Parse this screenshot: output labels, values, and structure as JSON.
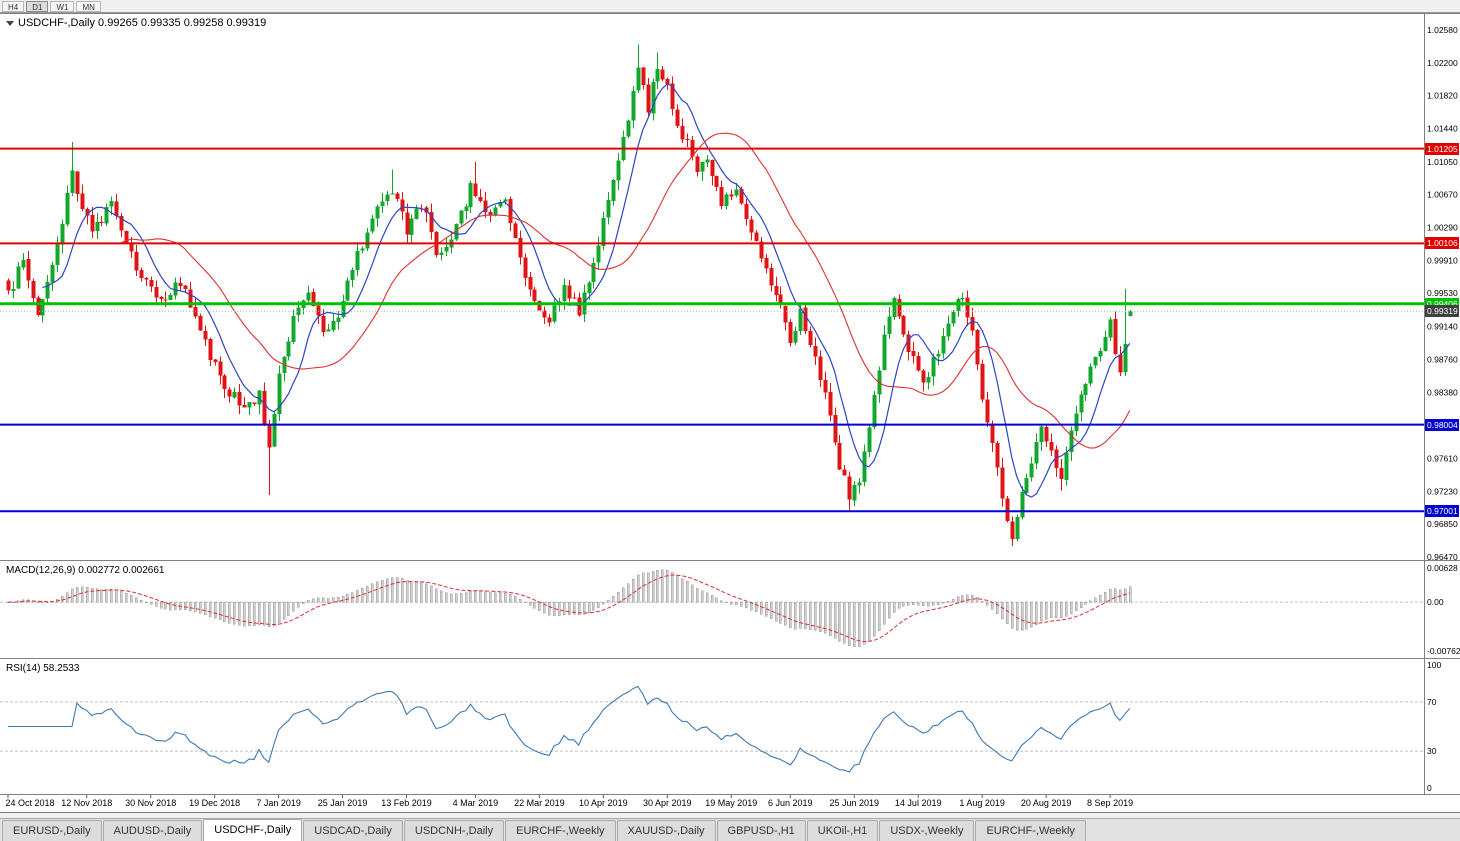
{
  "toolbar": {
    "timeframes": [
      "H4",
      "D1",
      "W1",
      "MN"
    ],
    "active": "D1"
  },
  "chart": {
    "header": "USDCHF-,Daily 0.99265 0.99335 0.99258 0.99319",
    "symbol": "USDCHF-,Daily",
    "ohlc": {
      "open": "0.99265",
      "high": "0.99335",
      "low": "0.99258",
      "close": "0.99319"
    }
  },
  "price_axis": {
    "labels": [
      "1.02580",
      "1.02200",
      "1.01820",
      "1.01440",
      "1.01050",
      "1.00670",
      "1.00290",
      "0.99910",
      "0.99530",
      "0.99140",
      "0.98760",
      "0.98380",
      "0.97990",
      "0.97610",
      "0.97230",
      "0.96850",
      "0.96470"
    ],
    "current_price_tag": "0.99319"
  },
  "levels": [
    {
      "label": "1.01205",
      "value": 1.01205,
      "color": "#e00000",
      "width": 2,
      "kind": "resistance"
    },
    {
      "label": "1.00106",
      "value": 1.00106,
      "color": "#e00000",
      "width": 2,
      "kind": "resistance"
    },
    {
      "label": "0.99406",
      "value": 0.99406,
      "color": "#00c000",
      "width": 3,
      "kind": "pivot"
    },
    {
      "label": "0.98004",
      "value": 0.98004,
      "color": "#0000d0",
      "width": 2,
      "kind": "support"
    },
    {
      "label": "0.97001",
      "value": 0.97001,
      "color": "#0000d0",
      "width": 2,
      "kind": "support"
    }
  ],
  "indicators": {
    "macd": {
      "label": "MACD(12,26,9) 0.002772 0.002661",
      "fast": 12,
      "slow": 26,
      "signal": 9,
      "axis_top": "0.00628",
      "axis_zero": "0.00",
      "axis_bottom": "-0.00762"
    },
    "rsi": {
      "label": "RSI(14) 58.2533",
      "period": 14,
      "value": 58.2533,
      "axis": [
        {
          "label": "100",
          "value": 100
        },
        {
          "label": "70",
          "value": 70
        },
        {
          "label": "30",
          "value": 30
        },
        {
          "label": "0",
          "value": 0
        }
      ],
      "levels": [
        70,
        30
      ]
    }
  },
  "date_axis": {
    "labels": [
      "24 Oct 2018",
      "12 Nov 2018",
      "30 Nov 2018",
      "19 Dec 2018",
      "7 Jan 2019",
      "25 Jan 2019",
      "13 Feb 2019",
      "4 Mar 2019",
      "22 Mar 2019",
      "10 Apr 2019",
      "30 Apr 2019",
      "19 May 2019",
      "6 Jun 2019",
      "25 Jun 2019",
      "14 Jul 2019",
      "1 Aug 2019",
      "20 Aug 2019",
      "8 Sep 2019"
    ],
    "bar_indices": [
      0,
      16,
      29,
      42,
      55,
      68,
      81,
      95,
      108,
      121,
      134,
      147,
      159,
      172,
      185,
      198,
      211,
      224
    ]
  },
  "tabs": {
    "items": [
      "EURUSD-,Daily",
      "AUDUSD-,Daily",
      "USDCHF-,Daily",
      "USDCAD-,Daily",
      "USDCNH-,Daily",
      "EURCHF-,Weekly",
      "XAUUSD-,Daily",
      "GBPUSD-,H1",
      "UKOil-,H1",
      "USDX-,Weekly",
      "EURCHF-,Weekly"
    ],
    "active_index": 2
  },
  "chart_data": {
    "type": "candlestick",
    "symbol": "USDCHF",
    "timeframe": "Daily",
    "bar_count": 229,
    "axis_range": {
      "top": 1.0258,
      "bottom": 0.9647
    },
    "price_keypoints": [
      [
        0,
        0.9952
      ],
      [
        3,
        0.999
      ],
      [
        6,
        0.993
      ],
      [
        9,
        0.9985
      ],
      [
        13,
        1.009
      ],
      [
        17,
        1.002
      ],
      [
        21,
        1.0058
      ],
      [
        26,
        0.998
      ],
      [
        31,
        0.994
      ],
      [
        35,
        0.9968
      ],
      [
        39,
        0.9905
      ],
      [
        44,
        0.9845
      ],
      [
        48,
        0.9818
      ],
      [
        51,
        0.9838
      ],
      [
        53,
        0.9768
      ],
      [
        55,
        0.9858
      ],
      [
        58,
        0.992
      ],
      [
        61,
        0.9952
      ],
      [
        64,
        0.9912
      ],
      [
        67,
        0.9928
      ],
      [
        71,
        0.9998
      ],
      [
        75,
        1.0048
      ],
      [
        78,
        1.0072
      ],
      [
        81,
        1.0028
      ],
      [
        84,
        1.0058
      ],
      [
        87,
        1.0002
      ],
      [
        90,
        1.0012
      ],
      [
        94,
        1.0075
      ],
      [
        98,
        1.004
      ],
      [
        101,
        1.0062
      ],
      [
        104,
        0.9995
      ],
      [
        107,
        0.994
      ],
      [
        110,
        0.9922
      ],
      [
        113,
        0.9962
      ],
      [
        116,
        0.993
      ],
      [
        119,
        0.9985
      ],
      [
        122,
        1.006
      ],
      [
        125,
        1.0135
      ],
      [
        128,
        1.0208
      ],
      [
        130,
        1.0168
      ],
      [
        132,
        1.0215
      ],
      [
        134,
        1.019
      ],
      [
        136,
        1.015
      ],
      [
        138,
        1.0125
      ],
      [
        140,
        1.0088
      ],
      [
        142,
        1.0108
      ],
      [
        145,
        1.0055
      ],
      [
        148,
        1.0078
      ],
      [
        151,
        1.0022
      ],
      [
        154,
        0.9978
      ],
      [
        157,
        0.994
      ],
      [
        159,
        0.9895
      ],
      [
        161,
        0.993
      ],
      [
        164,
        0.988
      ],
      [
        167,
        0.9812
      ],
      [
        169,
        0.9752
      ],
      [
        171,
        0.9718
      ],
      [
        173,
        0.9735
      ],
      [
        175,
        0.9792
      ],
      [
        178,
        0.9902
      ],
      [
        180,
        0.9948
      ],
      [
        183,
        0.989
      ],
      [
        186,
        0.9852
      ],
      [
        189,
        0.9882
      ],
      [
        192,
        0.9938
      ],
      [
        194,
        0.9952
      ],
      [
        196,
        0.9905
      ],
      [
        198,
        0.9832
      ],
      [
        200,
        0.9772
      ],
      [
        202,
        0.9718
      ],
      [
        204,
        0.9672
      ],
      [
        206,
        0.972
      ],
      [
        208,
        0.9762
      ],
      [
        210,
        0.9795
      ],
      [
        212,
        0.9772
      ],
      [
        214,
        0.9742
      ],
      [
        216,
        0.98
      ],
      [
        218,
        0.9838
      ],
      [
        220,
        0.9868
      ],
      [
        222,
        0.9888
      ],
      [
        224,
        0.9918
      ],
      [
        225,
        0.9888
      ],
      [
        226,
        0.9862
      ],
      [
        227,
        0.9888
      ],
      [
        228,
        0.99319
      ]
    ],
    "spike_highs": [
      [
        13,
        1.0128
      ],
      [
        78,
        1.0096
      ],
      [
        95,
        1.0105
      ],
      [
        128,
        1.0241
      ],
      [
        132,
        1.0232
      ],
      [
        227,
        0.9958
      ]
    ],
    "spike_lows": [
      [
        53,
        0.9719
      ],
      [
        171,
        0.9701
      ],
      [
        204,
        0.966
      ],
      [
        214,
        0.9724
      ]
    ],
    "ma_fast_period": 8,
    "ma_slow_period": 24,
    "colors": {
      "bull": "#10a72c",
      "bear": "#e01414",
      "ma_fast": "#2c45c8",
      "ma_slow": "#e03030",
      "macd_hist_fill": "#cfcfcf",
      "macd_hist_stroke": "#9a9a9a",
      "macd_signal": "#d83030",
      "rsi_line": "#3e78b5",
      "level_dash": "#c0c0c0",
      "current_price_line": "#b4b4b4",
      "current_price_tag_bg": "#404040"
    }
  }
}
